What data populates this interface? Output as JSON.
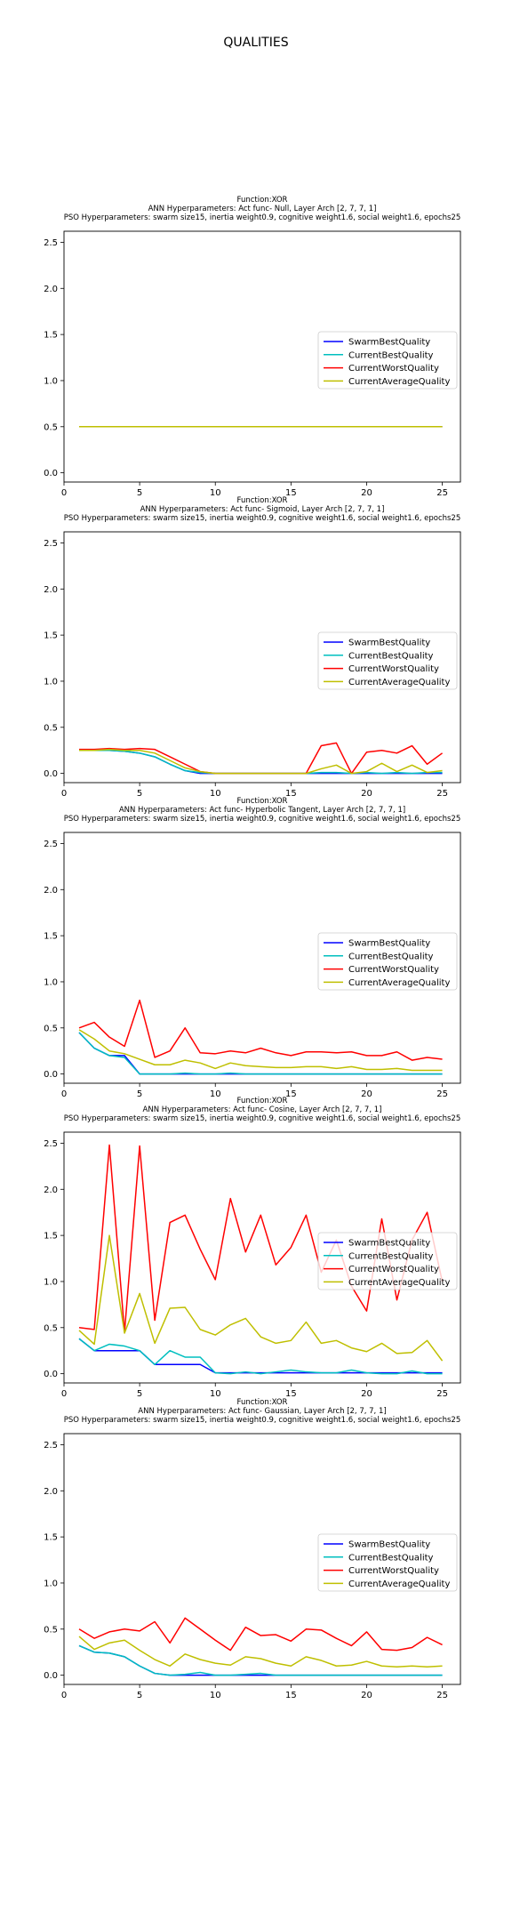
{
  "figure": {
    "title": "QUALITIES"
  },
  "colors": {
    "SwarmBestQuality": "#0000ff",
    "CurrentBestQuality": "#00bfbf",
    "CurrentWorstQuality": "#ff0000",
    "CurrentAverageQuality": "#bfbf00"
  },
  "chart_data": [
    {
      "type": "line",
      "title_lines": [
        "Function:XOR",
        "ANN Hyperparameters: Act func- Null, Layer Arch [2, 7, 7, 1]",
        "PSO Hyperparameters: swarm size15, inertia weight0.9, cognitive weight1.6, social weight1.6, epochs25"
      ],
      "xlabel": "",
      "ylabel": "",
      "xlim": [
        0,
        26.2
      ],
      "ylim": [
        -0.1,
        2.62
      ],
      "xticks": [
        0,
        5,
        10,
        15,
        20,
        25
      ],
      "yticks": [
        0.0,
        0.5,
        1.0,
        1.5,
        2.0,
        2.5
      ],
      "legend_position": "center-right",
      "x": [
        1,
        2,
        3,
        4,
        5,
        6,
        7,
        8,
        9,
        10,
        11,
        12,
        13,
        14,
        15,
        16,
        17,
        18,
        19,
        20,
        21,
        22,
        23,
        24,
        25
      ],
      "series": [
        {
          "name": "SwarmBestQuality",
          "values": [
            0.5,
            0.5,
            0.5,
            0.5,
            0.5,
            0.5,
            0.5,
            0.5,
            0.5,
            0.5,
            0.5,
            0.5,
            0.5,
            0.5,
            0.5,
            0.5,
            0.5,
            0.5,
            0.5,
            0.5,
            0.5,
            0.5,
            0.5,
            0.5,
            0.5
          ]
        },
        {
          "name": "CurrentBestQuality",
          "values": [
            0.5,
            0.5,
            0.5,
            0.5,
            0.5,
            0.5,
            0.5,
            0.5,
            0.5,
            0.5,
            0.5,
            0.5,
            0.5,
            0.5,
            0.5,
            0.5,
            0.5,
            0.5,
            0.5,
            0.5,
            0.5,
            0.5,
            0.5,
            0.5,
            0.5
          ]
        },
        {
          "name": "CurrentWorstQuality",
          "values": [
            0.5,
            0.5,
            0.5,
            0.5,
            0.5,
            0.5,
            0.5,
            0.5,
            0.5,
            0.5,
            0.5,
            0.5,
            0.5,
            0.5,
            0.5,
            0.5,
            0.5,
            0.5,
            0.5,
            0.5,
            0.5,
            0.5,
            0.5,
            0.5,
            0.5
          ]
        },
        {
          "name": "CurrentAverageQuality",
          "values": [
            0.5,
            0.5,
            0.5,
            0.5,
            0.5,
            0.5,
            0.5,
            0.5,
            0.5,
            0.5,
            0.5,
            0.5,
            0.5,
            0.5,
            0.5,
            0.5,
            0.5,
            0.5,
            0.5,
            0.5,
            0.5,
            0.5,
            0.5,
            0.5,
            0.5
          ]
        }
      ]
    },
    {
      "type": "line",
      "title_lines": [
        "Function:XOR",
        "ANN Hyperparameters: Act func- Sigmoid, Layer Arch [2, 7, 7, 1]",
        "PSO Hyperparameters: swarm size15, inertia weight0.9, cognitive weight1.6, social weight1.6, epochs25"
      ],
      "xlabel": "",
      "ylabel": "",
      "xlim": [
        0,
        26.2
      ],
      "ylim": [
        -0.1,
        2.62
      ],
      "xticks": [
        0,
        5,
        10,
        15,
        20,
        25
      ],
      "yticks": [
        0.0,
        0.5,
        1.0,
        1.5,
        2.0,
        2.5
      ],
      "legend_position": "center-right",
      "x": [
        1,
        2,
        3,
        4,
        5,
        6,
        7,
        8,
        9,
        10,
        11,
        12,
        13,
        14,
        15,
        16,
        17,
        18,
        19,
        20,
        21,
        22,
        23,
        24,
        25
      ],
      "series": [
        {
          "name": "SwarmBestQuality",
          "values": [
            0.25,
            0.25,
            0.25,
            0.24,
            0.22,
            0.18,
            0.1,
            0.03,
            0.0,
            0.0,
            0.0,
            0.0,
            0.0,
            0.0,
            0.0,
            0.0,
            0.0,
            0.0,
            0.0,
            0.0,
            0.0,
            0.0,
            0.0,
            0.0,
            0.0
          ]
        },
        {
          "name": "CurrentBestQuality",
          "values": [
            0.25,
            0.25,
            0.25,
            0.24,
            0.22,
            0.18,
            0.1,
            0.03,
            0.01,
            0.0,
            0.0,
            0.0,
            0.0,
            0.0,
            0.0,
            0.0,
            0.01,
            0.01,
            0.0,
            0.01,
            0.0,
            0.01,
            0.0,
            0.01,
            0.01
          ]
        },
        {
          "name": "CurrentWorstQuality",
          "values": [
            0.26,
            0.26,
            0.27,
            0.26,
            0.27,
            0.26,
            0.18,
            0.1,
            0.02,
            0.0,
            0.0,
            0.0,
            0.0,
            0.0,
            0.0,
            0.0,
            0.3,
            0.33,
            0.0,
            0.23,
            0.25,
            0.22,
            0.3,
            0.1,
            0.22
          ]
        },
        {
          "name": "CurrentAverageQuality",
          "values": [
            0.25,
            0.25,
            0.26,
            0.25,
            0.25,
            0.22,
            0.14,
            0.06,
            0.02,
            0.0,
            0.0,
            0.0,
            0.0,
            0.0,
            0.0,
            0.0,
            0.05,
            0.09,
            0.0,
            0.02,
            0.11,
            0.02,
            0.09,
            0.01,
            0.03
          ]
        }
      ]
    },
    {
      "type": "line",
      "title_lines": [
        "Function:XOR",
        "ANN Hyperparameters: Act func- Hyperbolic Tangent, Layer Arch [2, 7, 7, 1]",
        "PSO Hyperparameters: swarm size15, inertia weight0.9, cognitive weight1.6, social weight1.6, epochs25"
      ],
      "xlabel": "",
      "ylabel": "",
      "xlim": [
        0,
        26.2
      ],
      "ylim": [
        -0.1,
        2.62
      ],
      "xticks": [
        0,
        5,
        10,
        15,
        20,
        25
      ],
      "yticks": [
        0.0,
        0.5,
        1.0,
        1.5,
        2.0,
        2.5
      ],
      "legend_position": "center-right",
      "x": [
        1,
        2,
        3,
        4,
        5,
        6,
        7,
        8,
        9,
        10,
        11,
        12,
        13,
        14,
        15,
        16,
        17,
        18,
        19,
        20,
        21,
        22,
        23,
        24,
        25
      ],
      "series": [
        {
          "name": "SwarmBestQuality",
          "values": [
            0.45,
            0.28,
            0.2,
            0.2,
            0.0,
            0.0,
            0.0,
            0.0,
            0.0,
            0.0,
            0.0,
            0.0,
            0.0,
            0.0,
            0.0,
            0.0,
            0.0,
            0.0,
            0.0,
            0.0,
            0.0,
            0.0,
            0.0,
            0.0,
            0.0
          ]
        },
        {
          "name": "CurrentBestQuality",
          "values": [
            0.45,
            0.28,
            0.2,
            0.18,
            0.0,
            0.0,
            0.0,
            0.01,
            0.0,
            0.0,
            0.01,
            0.0,
            0.0,
            0.0,
            0.0,
            0.0,
            0.0,
            0.0,
            0.0,
            0.0,
            0.0,
            0.0,
            0.0,
            0.0,
            0.0
          ]
        },
        {
          "name": "CurrentWorstQuality",
          "values": [
            0.5,
            0.56,
            0.4,
            0.3,
            0.8,
            0.18,
            0.25,
            0.5,
            0.23,
            0.22,
            0.25,
            0.23,
            0.28,
            0.23,
            0.2,
            0.24,
            0.24,
            0.23,
            0.24,
            0.2,
            0.2,
            0.24,
            0.15,
            0.18,
            0.16
          ]
        },
        {
          "name": "CurrentAverageQuality",
          "values": [
            0.48,
            0.38,
            0.25,
            0.22,
            0.16,
            0.1,
            0.1,
            0.15,
            0.12,
            0.06,
            0.12,
            0.09,
            0.08,
            0.07,
            0.07,
            0.08,
            0.08,
            0.06,
            0.08,
            0.05,
            0.05,
            0.06,
            0.04,
            0.04,
            0.04
          ]
        }
      ]
    },
    {
      "type": "line",
      "title_lines": [
        "Function:XOR",
        "ANN Hyperparameters: Act func- Cosine, Layer Arch [2, 7, 7, 1]",
        "PSO Hyperparameters: swarm size15, inertia weight0.9, cognitive weight1.6, social weight1.6, epochs25"
      ],
      "xlabel": "",
      "ylabel": "",
      "xlim": [
        0,
        26.2
      ],
      "ylim": [
        -0.1,
        2.62
      ],
      "xticks": [
        0,
        5,
        10,
        15,
        20,
        25
      ],
      "yticks": [
        0.0,
        0.5,
        1.0,
        1.5,
        2.0,
        2.5
      ],
      "legend_position": "center-right",
      "x": [
        1,
        2,
        3,
        4,
        5,
        6,
        7,
        8,
        9,
        10,
        11,
        12,
        13,
        14,
        15,
        16,
        17,
        18,
        19,
        20,
        21,
        22,
        23,
        24,
        25
      ],
      "series": [
        {
          "name": "SwarmBestQuality",
          "values": [
            0.38,
            0.25,
            0.25,
            0.25,
            0.25,
            0.1,
            0.1,
            0.1,
            0.1,
            0.01,
            0.01,
            0.01,
            0.01,
            0.01,
            0.01,
            0.01,
            0.01,
            0.01,
            0.01,
            0.01,
            0.01,
            0.01,
            0.01,
            0.01,
            0.01
          ]
        },
        {
          "name": "CurrentBestQuality",
          "values": [
            0.38,
            0.25,
            0.32,
            0.3,
            0.25,
            0.1,
            0.25,
            0.18,
            0.18,
            0.01,
            0.0,
            0.02,
            0.0,
            0.02,
            0.04,
            0.02,
            0.01,
            0.01,
            0.04,
            0.01,
            0.0,
            0.0,
            0.03,
            0.0,
            0.0
          ]
        },
        {
          "name": "CurrentWorstQuality",
          "values": [
            0.5,
            0.48,
            2.48,
            0.45,
            2.47,
            0.58,
            1.64,
            1.72,
            1.35,
            1.02,
            1.9,
            1.32,
            1.72,
            1.18,
            1.37,
            1.72,
            1.1,
            1.45,
            0.95,
            0.68,
            1.68,
            0.8,
            1.45,
            1.75,
            1.0
          ]
        },
        {
          "name": "CurrentAverageQuality",
          "values": [
            0.47,
            0.32,
            1.5,
            0.44,
            0.87,
            0.33,
            0.71,
            0.72,
            0.48,
            0.42,
            0.53,
            0.6,
            0.4,
            0.33,
            0.36,
            0.56,
            0.33,
            0.36,
            0.28,
            0.24,
            0.33,
            0.22,
            0.23,
            0.36,
            0.14
          ]
        }
      ]
    },
    {
      "type": "line",
      "title_lines": [
        "Function:XOR",
        "ANN Hyperparameters: Act func- Gaussian, Layer Arch [2, 7, 7, 1]",
        "PSO Hyperparameters: swarm size15, inertia weight0.9, cognitive weight1.6, social weight1.6, epochs25"
      ],
      "xlabel": "",
      "ylabel": "",
      "xlim": [
        0,
        26.2
      ],
      "ylim": [
        -0.1,
        2.62
      ],
      "xticks": [
        0,
        5,
        10,
        15,
        20,
        25
      ],
      "yticks": [
        0.0,
        0.5,
        1.0,
        1.5,
        2.0,
        2.5
      ],
      "legend_position": "center-right",
      "x": [
        1,
        2,
        3,
        4,
        5,
        6,
        7,
        8,
        9,
        10,
        11,
        12,
        13,
        14,
        15,
        16,
        17,
        18,
        19,
        20,
        21,
        22,
        23,
        24,
        25
      ],
      "series": [
        {
          "name": "SwarmBestQuality",
          "values": [
            0.32,
            0.25,
            0.24,
            0.2,
            0.1,
            0.02,
            0.0,
            0.0,
            0.0,
            0.0,
            0.0,
            0.0,
            0.0,
            0.0,
            0.0,
            0.0,
            0.0,
            0.0,
            0.0,
            0.0,
            0.0,
            0.0,
            0.0,
            0.0,
            0.0
          ]
        },
        {
          "name": "CurrentBestQuality",
          "values": [
            0.32,
            0.25,
            0.24,
            0.2,
            0.1,
            0.02,
            0.0,
            0.01,
            0.03,
            0.0,
            0.0,
            0.01,
            0.02,
            0.0,
            0.0,
            0.0,
            0.0,
            0.0,
            0.0,
            0.0,
            0.0,
            0.0,
            0.0,
            0.0,
            0.0
          ]
        },
        {
          "name": "CurrentWorstQuality",
          "values": [
            0.5,
            0.4,
            0.47,
            0.5,
            0.48,
            0.58,
            0.35,
            0.62,
            0.5,
            0.38,
            0.27,
            0.52,
            0.43,
            0.44,
            0.37,
            0.5,
            0.49,
            0.4,
            0.32,
            0.47,
            0.28,
            0.27,
            0.3,
            0.41,
            0.33
          ]
        },
        {
          "name": "CurrentAverageQuality",
          "values": [
            0.42,
            0.28,
            0.35,
            0.38,
            0.27,
            0.17,
            0.1,
            0.23,
            0.17,
            0.13,
            0.11,
            0.2,
            0.18,
            0.13,
            0.1,
            0.2,
            0.16,
            0.1,
            0.11,
            0.15,
            0.1,
            0.09,
            0.1,
            0.09,
            0.1
          ]
        }
      ]
    }
  ]
}
